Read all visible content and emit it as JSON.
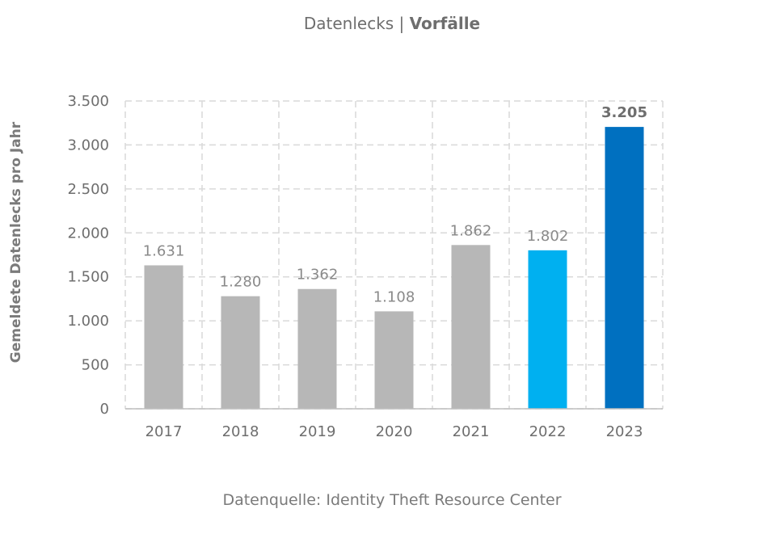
{
  "header": {
    "title_regular": "Datenlecks | ",
    "title_bold": "Vorfälle"
  },
  "footer": {
    "source": "Datenquelle: Identity Theft Resource Center"
  },
  "chart_data": {
    "type": "bar",
    "title": "Datenlecks | Vorfälle",
    "xlabel": "",
    "ylabel": "Gemeldete Datenlecks pro Jahr",
    "categories": [
      "2017",
      "2018",
      "2019",
      "2020",
      "2021",
      "2022",
      "2023"
    ],
    "values": [
      1631,
      1280,
      1362,
      1108,
      1862,
      1802,
      3205
    ],
    "data_labels": [
      "1.631",
      "1.280",
      "1.362",
      "1.108",
      "1.862",
      "1.802",
      "3.205"
    ],
    "bold_labels": [
      false,
      false,
      false,
      false,
      false,
      false,
      true
    ],
    "bar_colors": [
      "#b7b7b7",
      "#b7b7b7",
      "#b7b7b7",
      "#b7b7b7",
      "#b7b7b7",
      "#00b0f0",
      "#0070c0"
    ],
    "ylim": [
      0,
      3500
    ],
    "yticks": [
      0,
      500,
      1000,
      1500,
      2000,
      2500,
      3000,
      3500
    ],
    "ytick_labels": [
      "0",
      "500",
      "1.000",
      "1.500",
      "2.000",
      "2.500",
      "3.000",
      "3.500"
    ],
    "grid": true,
    "grid_style": "dashed",
    "grid_color": "#d9d9d9"
  }
}
